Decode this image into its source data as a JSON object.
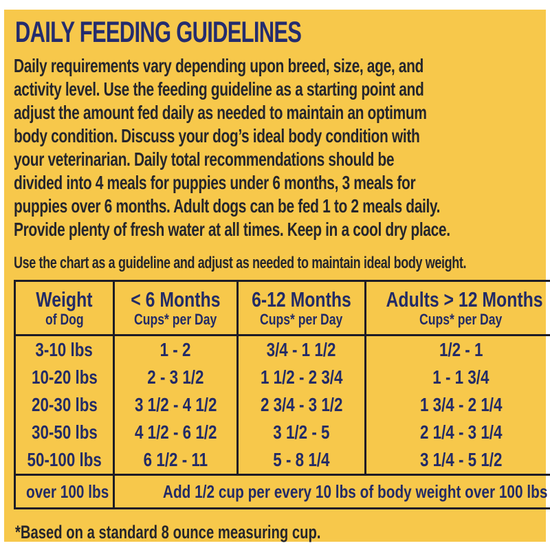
{
  "label": {
    "title": "DAILY FEEDING GUIDELINES",
    "intro_lines": [
      "Daily requirements vary depending upon breed, size, age, and",
      "activity level. Use the feeding guideline as a starting point and",
      "adjust the amount fed daily as needed to maintain an optimum",
      "body condition. Discuss your dog’s ideal body condition with",
      "your veterinarian. Daily total recommendations should be",
      "divided into 4 meals for puppies under 6 months, 3 meals for",
      "puppies over 6 months. Adult dogs can be fed 1 to 2 meals daily.",
      "Provide plenty of fresh water at all times. Keep in a cool dry place."
    ],
    "chart_note": "Use the chart as a guideline and adjust as needed to maintain ideal body weight.",
    "footnote": "*Based on a standard 8 ounce measuring cup."
  },
  "table": {
    "headers": [
      {
        "main": "Weight",
        "sub": "of Dog"
      },
      {
        "main": "< 6 Months",
        "sub": "Cups* per Day"
      },
      {
        "main": "6-12 Months",
        "sub": "Cups* per Day"
      },
      {
        "main": "Adults > 12 Months",
        "sub": "Cups* per Day"
      }
    ],
    "rows": [
      [
        "3-10 lbs",
        "1 - 2",
        "3/4 - 1 1/2",
        "1/2 - 1"
      ],
      [
        "10-20 lbs",
        "2 - 3 1/2",
        "1 1/2 - 2 3/4",
        "1 - 1 3/4"
      ],
      [
        "20-30 lbs",
        "3 1/2 - 4 1/2",
        "2 3/4 - 3 1/2",
        "1 3/4 - 2 1/4"
      ],
      [
        "30-50 lbs",
        "4 1/2 - 6 1/2",
        "3 1/2 - 5",
        "2 1/4 - 3 1/4"
      ],
      [
        "50-100 lbs",
        "6 1/2 - 11",
        "5 - 8 1/4",
        "3 1/4 - 5 1/2"
      ]
    ],
    "last_row": {
      "weight": "over 100 lbs",
      "note": "Add 1/2 cup per every 10 lbs of body weight over 100 lbs"
    }
  },
  "colors": {
    "background": "#f7c84b",
    "navy": "#232b66",
    "text_dark": "#26262c",
    "border": "#1c1c26"
  }
}
